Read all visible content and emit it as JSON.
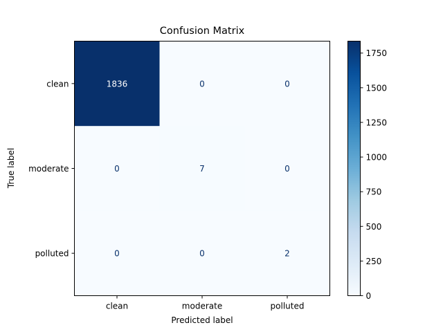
{
  "chart_data": {
    "type": "heatmap",
    "title": "Confusion Matrix",
    "xlabel": "Predicted label",
    "ylabel": "True label",
    "x_categories": [
      "clean",
      "moderate",
      "polluted"
    ],
    "y_categories": [
      "clean",
      "moderate",
      "polluted"
    ],
    "values": [
      [
        1836,
        0,
        0
      ],
      [
        0,
        7,
        0
      ],
      [
        0,
        0,
        2
      ]
    ],
    "colormap": "Blues",
    "colorbar": {
      "min": 0,
      "max": 1836,
      "ticks": [
        "0",
        "250",
        "500",
        "750",
        "1000",
        "1250",
        "1500",
        "1750"
      ]
    },
    "grid": false
  }
}
